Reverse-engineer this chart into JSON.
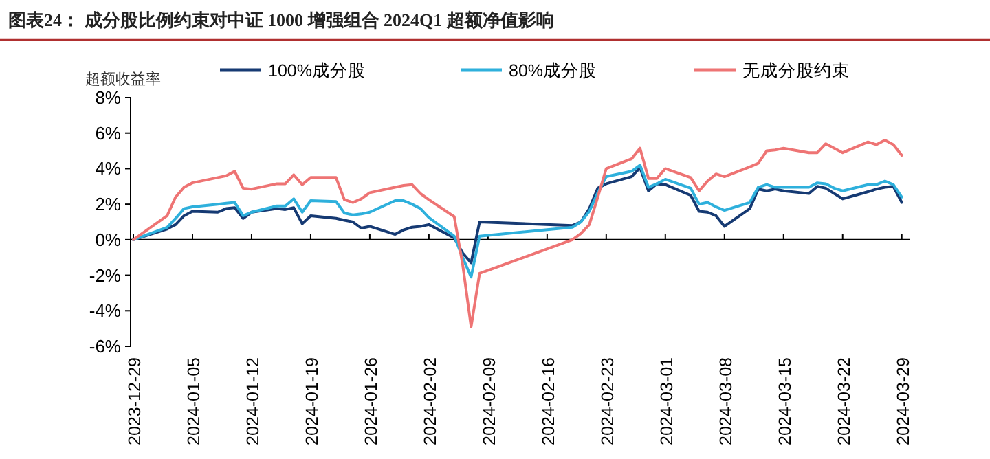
{
  "chart_data": {
    "type": "line",
    "title": "图表24：  成分股比例约束对中证 1000 增强组合 2024Q1 超额净值影响",
    "ylabel": "超额收益率",
    "x": [
      "2023-12-29",
      "2024-01-02",
      "2024-01-03",
      "2024-01-04",
      "2024-01-05",
      "2024-01-08",
      "2024-01-09",
      "2024-01-10",
      "2024-01-11",
      "2024-01-12",
      "2024-01-15",
      "2024-01-16",
      "2024-01-17",
      "2024-01-18",
      "2024-01-19",
      "2024-01-22",
      "2024-01-23",
      "2024-01-24",
      "2024-01-25",
      "2024-01-26",
      "2024-01-29",
      "2024-01-30",
      "2024-01-31",
      "2024-02-01",
      "2024-02-02",
      "2024-02-05",
      "2024-02-06",
      "2024-02-07",
      "2024-02-08",
      "2024-02-19",
      "2024-02-20",
      "2024-02-21",
      "2024-02-22",
      "2024-02-23",
      "2024-02-26",
      "2024-02-27",
      "2024-02-28",
      "2024-02-29",
      "2024-03-01",
      "2024-03-04",
      "2024-03-05",
      "2024-03-06",
      "2024-03-07",
      "2024-03-08",
      "2024-03-11",
      "2024-03-12",
      "2024-03-13",
      "2024-03-14",
      "2024-03-15",
      "2024-03-18",
      "2024-03-19",
      "2024-03-20",
      "2024-03-21",
      "2024-03-22",
      "2024-03-25",
      "2024-03-26",
      "2024-03-27",
      "2024-03-28",
      "2024-03-29"
    ],
    "series": [
      {
        "name": "100%成分股",
        "color": "#163a73",
        "values": [
          0,
          0.6,
          0.85,
          1.35,
          1.6,
          1.55,
          1.75,
          1.8,
          1.2,
          1.55,
          1.75,
          1.7,
          1.8,
          0.9,
          1.35,
          1.2,
          1.1,
          1.0,
          0.65,
          0.75,
          0.3,
          0.55,
          0.7,
          0.75,
          0.85,
          0.1,
          -0.75,
          -1.3,
          1.0,
          0.8,
          1.0,
          1.75,
          2.9,
          3.15,
          3.55,
          4.05,
          2.75,
          3.15,
          3.1,
          2.5,
          1.6,
          1.55,
          1.35,
          0.75,
          1.75,
          2.85,
          2.75,
          2.85,
          2.75,
          2.6,
          3.0,
          2.9,
          2.6,
          2.3,
          2.7,
          2.85,
          2.95,
          3.0,
          2.1
        ]
      },
      {
        "name": "80%成分股",
        "color": "#2eb0dc",
        "values": [
          0,
          0.7,
          1.2,
          1.75,
          1.85,
          2.0,
          2.05,
          2.1,
          1.35,
          1.55,
          1.9,
          1.9,
          2.3,
          1.55,
          2.2,
          2.15,
          1.5,
          1.4,
          1.45,
          1.55,
          2.2,
          2.2,
          2.0,
          1.75,
          1.25,
          0.2,
          -1.0,
          -2.1,
          0.2,
          0.7,
          1.0,
          1.6,
          2.65,
          3.55,
          3.85,
          4.2,
          2.95,
          3.15,
          3.4,
          2.9,
          2.0,
          2.1,
          1.85,
          1.65,
          2.1,
          2.95,
          3.1,
          2.95,
          2.95,
          2.95,
          3.2,
          3.15,
          2.9,
          2.75,
          3.1,
          3.1,
          3.3,
          3.1,
          2.4
        ]
      },
      {
        "name": "无成分股约束",
        "color": "#ee7474",
        "values": [
          0,
          1.35,
          2.4,
          2.95,
          3.2,
          3.5,
          3.6,
          3.85,
          2.9,
          2.85,
          3.15,
          3.15,
          3.65,
          3.1,
          3.5,
          3.5,
          2.25,
          2.1,
          2.3,
          2.65,
          2.95,
          3.05,
          3.1,
          2.6,
          2.25,
          1.3,
          -1.4,
          -4.9,
          -1.9,
          0,
          0.35,
          0.85,
          2.4,
          4.0,
          4.55,
          5.15,
          3.45,
          3.45,
          4.0,
          3.5,
          2.75,
          3.3,
          3.7,
          3.55,
          4.1,
          4.3,
          5.0,
          5.05,
          5.15,
          4.9,
          4.9,
          5.4,
          5.15,
          4.9,
          5.5,
          5.35,
          5.6,
          5.35,
          4.75
        ]
      }
    ],
    "xlim": [
      "2023-12-29",
      "2024-03-30"
    ],
    "xticks": [
      "2023-12-29",
      "2024-01-05",
      "2024-01-12",
      "2024-01-19",
      "2024-01-26",
      "2024-02-02",
      "2024-02-09",
      "2024-02-16",
      "2024-02-23",
      "2024-03-01",
      "2024-03-08",
      "2024-03-15",
      "2024-03-22",
      "2024-03-29"
    ],
    "ylim": [
      -6,
      8
    ],
    "yticks": [
      {
        "value": -6,
        "label": "-6%"
      },
      {
        "value": -4,
        "label": "-4%"
      },
      {
        "value": -2,
        "label": "-2%"
      },
      {
        "value": 0,
        "label": "0%"
      },
      {
        "value": 2,
        "label": "2%"
      },
      {
        "value": 4,
        "label": "4%"
      },
      {
        "value": 6,
        "label": "6%"
      },
      {
        "value": 8,
        "label": "8%"
      }
    ],
    "legend": "top",
    "marker": "none",
    "line_style": "solid"
  }
}
